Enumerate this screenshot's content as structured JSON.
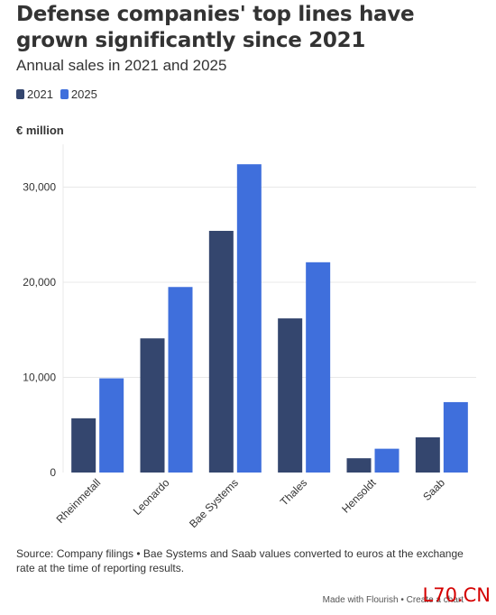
{
  "title": "Defense companies' top lines have grown significantly since 2021",
  "subtitle": "Annual sales in 2021 and 2025",
  "unit": "€ million",
  "colors": {
    "2021": "#34466e",
    "2025": "#3f6fdc",
    "grid": "#e8e8e8",
    "axis": "#333333"
  },
  "chart_data": {
    "type": "bar",
    "categories": [
      "Rheinmetall",
      "Leonardo",
      "Bae Systems",
      "Thales",
      "Hensoldt",
      "Saab"
    ],
    "series": [
      {
        "name": "2021",
        "values": [
          5700,
          14100,
          25400,
          16200,
          1500,
          3700
        ]
      },
      {
        "name": "2025",
        "values": [
          9900,
          19500,
          32400,
          22100,
          2500,
          7400
        ]
      }
    ],
    "ylim": [
      0,
      34500
    ],
    "yticks": [
      0,
      10000,
      20000,
      30000
    ],
    "ytick_labels": [
      "0",
      "10,000",
      "20,000",
      "30,000"
    ],
    "grid": true,
    "legend": "top-left"
  },
  "source": "Source: Company filings • Bae Systems and Saab values converted to euros at the exchange rate at the time of reporting results.",
  "made_with": "Made with Flourish • Create a chart",
  "watermark": "L70.CN"
}
